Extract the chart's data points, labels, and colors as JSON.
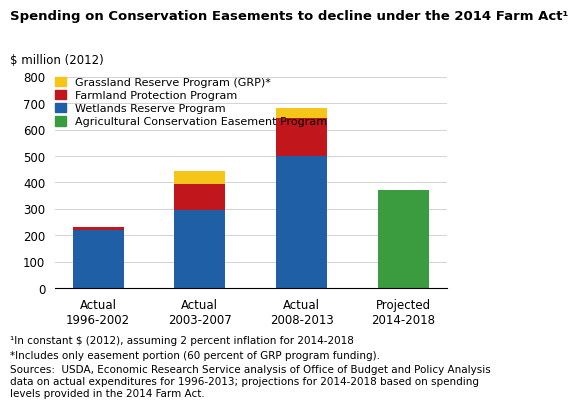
{
  "title": "Spending on Conservation Easements to decline under the 2014 Farm Act¹",
  "ylabel_above": "$ million (2012)",
  "ylim": [
    0,
    800
  ],
  "yticks": [
    0,
    100,
    200,
    300,
    400,
    500,
    600,
    700,
    800
  ],
  "categories": [
    "Actual\n1996-2002",
    "Actual\n2003-2007",
    "Actual\n2008-2013",
    "Projected\n2014-2018"
  ],
  "WRP": [
    220,
    295,
    500,
    0
  ],
  "FPP": [
    10,
    100,
    143,
    0
  ],
  "GRP": [
    0,
    50,
    38,
    0
  ],
  "ACEP": [
    0,
    0,
    0,
    370
  ],
  "colors": {
    "WRP": "#1f5fa6",
    "FPP": "#c0161c",
    "GRP": "#f5c518",
    "ACEP": "#3a9c3e"
  },
  "legend_labels": [
    "Grassland Reserve Program (GRP)*",
    "Farmland Protection Program",
    "Wetlands Reserve Program",
    "Agricultural Conservation Easement Program"
  ],
  "footnote1": "¹In constant $ (2012), assuming 2 percent inflation for 2014-2018",
  "footnote2": "*Includes only easement portion (60 percent of GRP program funding).",
  "footnote3": "Sources:  USDA, Economic Research Service analysis of Office of Budget and Policy Analysis\ndata on actual expenditures for 1996-2013; projections for 2014-2018 based on spending\nlevels provided in the 2014 Farm Act.",
  "background_color": "#ffffff",
  "title_fontsize": 9.5,
  "axis_fontsize": 8.5,
  "footnote_fontsize": 7.5,
  "legend_fontsize": 8
}
